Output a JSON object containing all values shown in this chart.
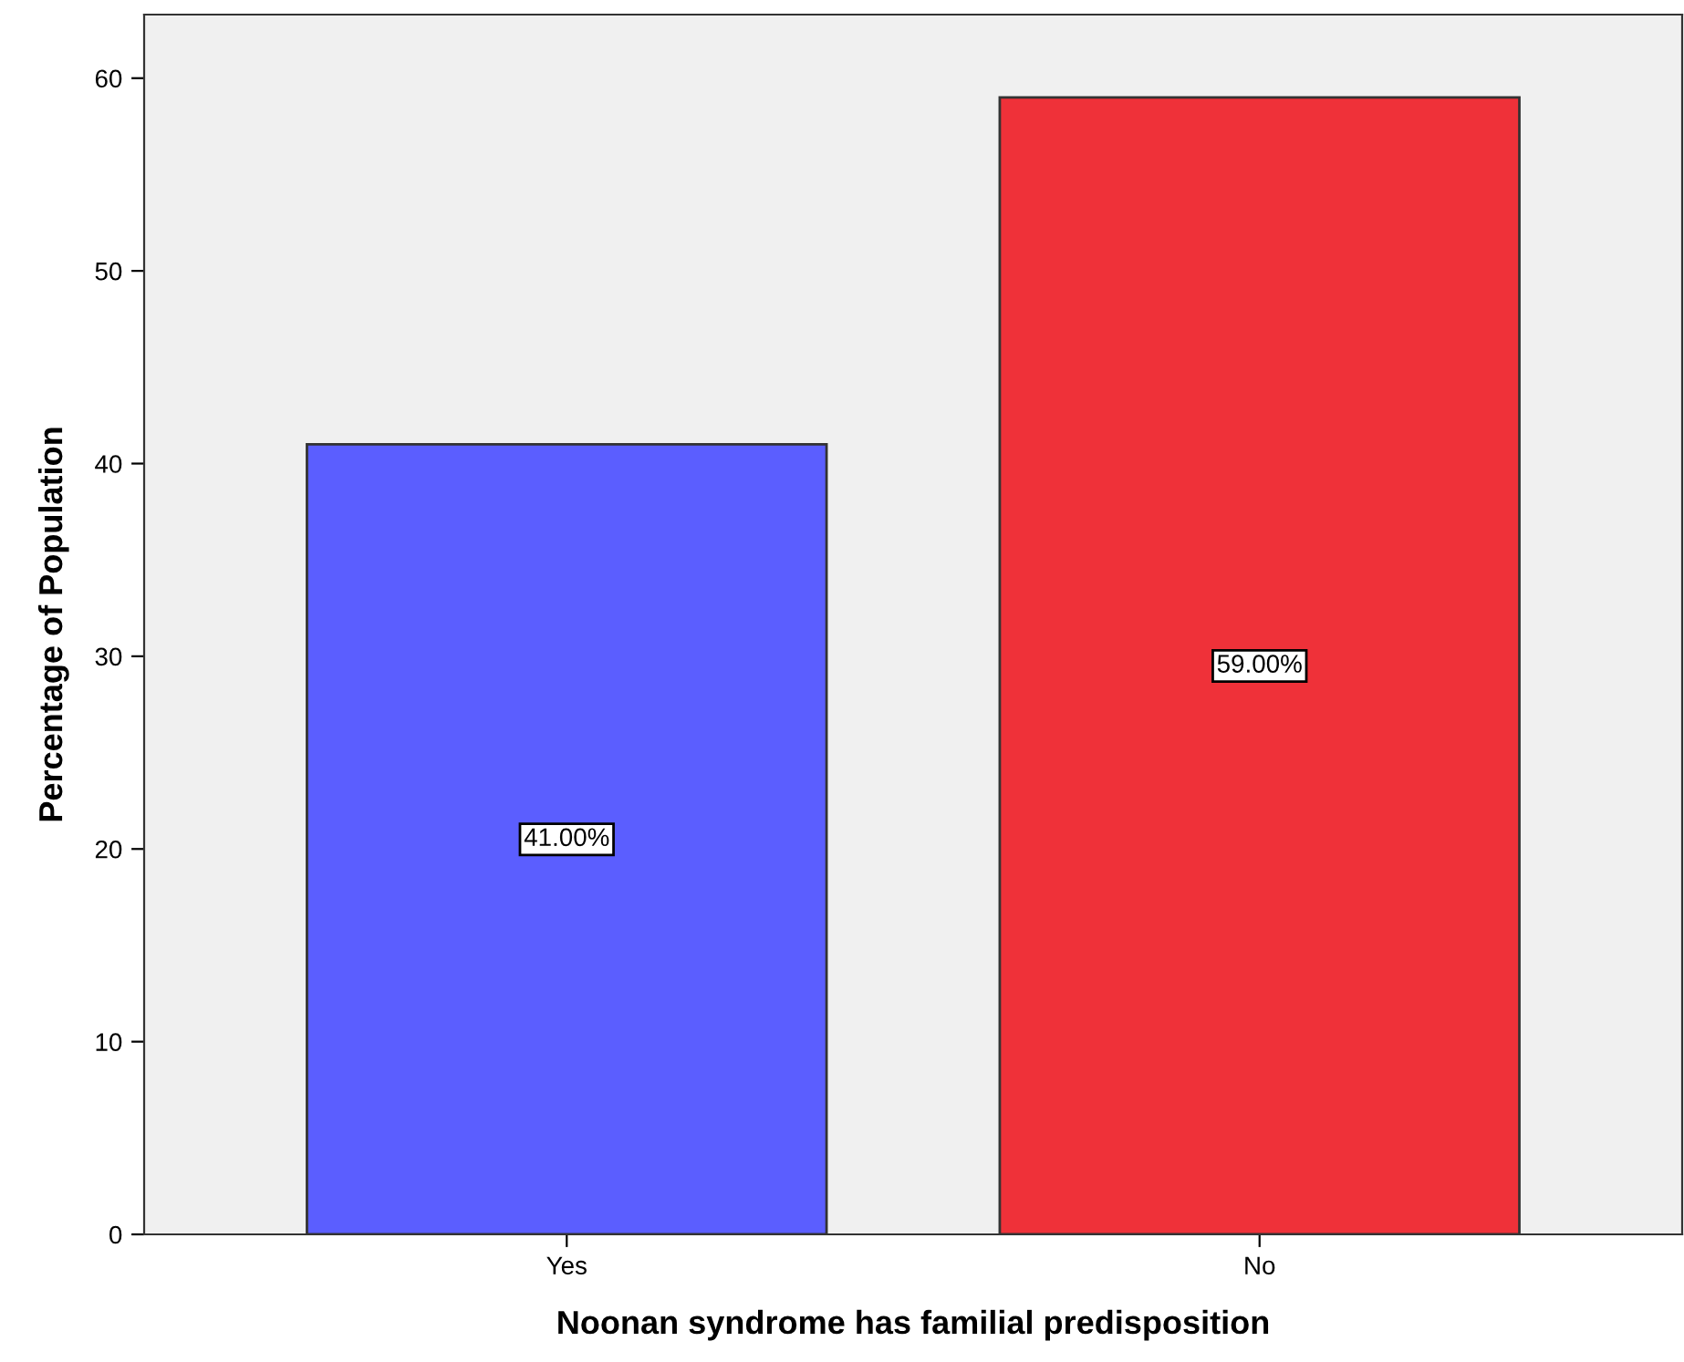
{
  "chart_data": {
    "type": "bar",
    "xlabel": "Noonan syndrome has familial predisposition",
    "ylabel": "Percentage of Population",
    "categories": [
      "Yes",
      "No"
    ],
    "values": [
      41,
      59
    ],
    "colors": [
      "#5b5eff",
      "#ef3139"
    ],
    "value_labels": [
      "41.00%",
      "59.00%"
    ],
    "ylim": [
      0,
      63.3
    ],
    "yticks": [
      0,
      10,
      20,
      30,
      40,
      50,
      60
    ],
    "grid": false
  }
}
